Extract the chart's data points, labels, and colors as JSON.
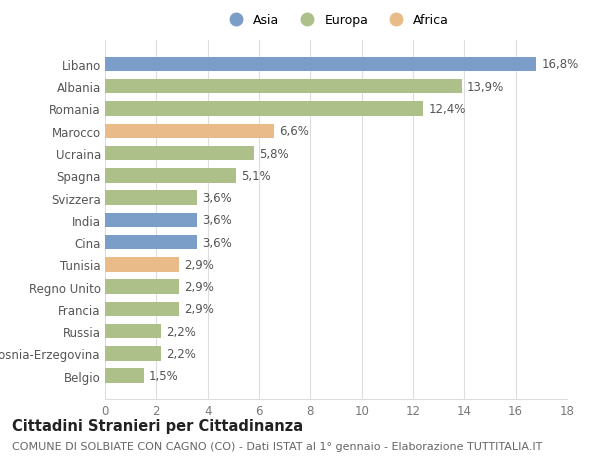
{
  "categories": [
    "Libano",
    "Albania",
    "Romania",
    "Marocco",
    "Ucraina",
    "Spagna",
    "Svizzera",
    "India",
    "Cina",
    "Tunisia",
    "Regno Unito",
    "Francia",
    "Russia",
    "Bosnia-Erzegovina",
    "Belgio"
  ],
  "values": [
    16.8,
    13.9,
    12.4,
    6.6,
    5.8,
    5.1,
    3.6,
    3.6,
    3.6,
    2.9,
    2.9,
    2.9,
    2.2,
    2.2,
    1.5
  ],
  "continents": [
    "Asia",
    "Europa",
    "Europa",
    "Africa",
    "Europa",
    "Europa",
    "Europa",
    "Asia",
    "Asia",
    "Africa",
    "Europa",
    "Europa",
    "Europa",
    "Europa",
    "Europa"
  ],
  "colors": {
    "Asia": "#7b9ec9",
    "Europa": "#adc08a",
    "Africa": "#e8bb88"
  },
  "legend_labels": [
    "Asia",
    "Europa",
    "Africa"
  ],
  "legend_colors": [
    "#7b9ec9",
    "#adc08a",
    "#e8bb88"
  ],
  "xlim": [
    0,
    18
  ],
  "xticks": [
    0,
    2,
    4,
    6,
    8,
    10,
    12,
    14,
    16,
    18
  ],
  "title": "Cittadini Stranieri per Cittadinanza",
  "subtitle": "COMUNE DI SOLBIATE CON CAGNO (CO) - Dati ISTAT al 1° gennaio - Elaborazione TUTTITALIA.IT",
  "background_color": "#ffffff",
  "bar_height": 0.65,
  "grid_color": "#dddddd",
  "label_fontsize": 8.5,
  "value_fontsize": 8.5,
  "title_fontsize": 10.5,
  "subtitle_fontsize": 8
}
